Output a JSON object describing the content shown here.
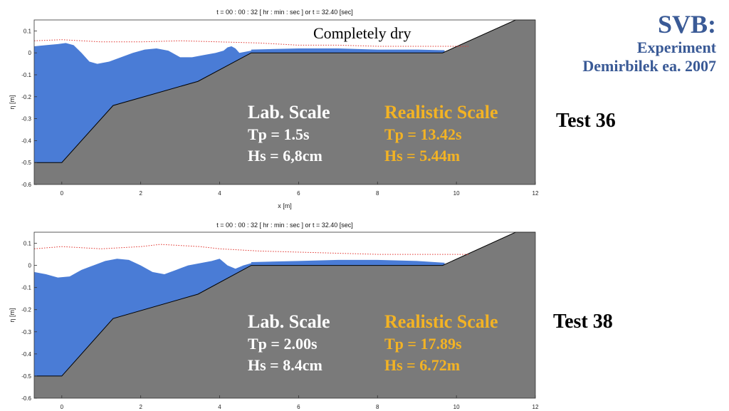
{
  "brand": {
    "title": "SVB:",
    "line2": "Experiment",
    "line3": "Demirbilek ea. 2007"
  },
  "colors": {
    "water": "#4a7cd6",
    "bed": "#7a7a7a",
    "bed_edge": "#000000",
    "envelope": "#e0302a",
    "lab_text": "#ffffff",
    "real_text": "#f3b324",
    "brand_text": "#3a5a96"
  },
  "chart_data": [
    {
      "type": "area",
      "title": "t = 00 : 00 : 32 [ hr : min : sec ] or t =  32.40 [sec]",
      "xlabel": "x [m]",
      "ylabel": "η [m]",
      "xlim": [
        -0.7,
        12
      ],
      "ylim": [
        -0.6,
        0.15
      ],
      "xticks": [
        "0",
        "2",
        "4",
        "6",
        "8",
        "10",
        "12"
      ],
      "yticks": [
        "0.1",
        "0",
        "-0.1",
        "-0.2",
        "-0.3",
        "-0.4",
        "-0.5",
        "-0.6"
      ],
      "bed": {
        "x": [
          -0.7,
          0,
          1.3,
          3.45,
          4.8,
          9.65,
          11.5,
          12
        ],
        "z": [
          -0.5,
          -0.5,
          -0.24,
          -0.13,
          0.0,
          0.0,
          0.15,
          0.15
        ]
      },
      "surface": {
        "x": [
          -0.7,
          -0.4,
          -0.1,
          0.1,
          0.3,
          0.5,
          0.7,
          0.9,
          1.2,
          1.5,
          1.8,
          2.1,
          2.4,
          2.7,
          3.0,
          3.3,
          3.6,
          3.9,
          4.1,
          4.2,
          4.3,
          4.4,
          4.5,
          4.8
        ],
        "y": [
          0.03,
          0.035,
          0.04,
          0.045,
          0.035,
          0.0,
          -0.04,
          -0.05,
          -0.04,
          -0.02,
          0.0,
          0.015,
          0.02,
          0.01,
          -0.02,
          -0.02,
          -0.01,
          -0.0,
          0.01,
          0.025,
          0.03,
          0.02,
          0.0,
          0.01
        ]
      },
      "shelf_water": {
        "x": [
          4.8,
          6,
          7,
          8,
          9,
          9.7
        ],
        "y": [
          0.015,
          0.02,
          0.02,
          0.015,
          0.015,
          0.012
        ]
      },
      "envelope": {
        "x": [
          -0.7,
          0,
          1,
          2,
          3,
          4,
          5,
          6,
          7,
          8,
          9,
          10,
          10.3
        ],
        "y": [
          0.055,
          0.06,
          0.05,
          0.05,
          0.055,
          0.05,
          0.045,
          0.035,
          0.035,
          0.03,
          0.03,
          0.03,
          0.03
        ]
      },
      "annotation": "Completely dry",
      "lab": {
        "header": "Lab. Scale",
        "tp": "Tp = 1.5s",
        "hs": "Hs = 6,8cm"
      },
      "real": {
        "header": "Realistic Scale",
        "tp": "Tp = 13.42s",
        "hs": "Hs = 5.44m"
      },
      "test": "Test 36"
    },
    {
      "type": "area",
      "title": "t = 00 : 00 : 32 [ hr : min : sec ] or t =  32.40 [sec]",
      "xlabel": "",
      "ylabel": "η [m]",
      "xlim": [
        -0.7,
        12
      ],
      "ylim": [
        -0.6,
        0.15
      ],
      "xticks": [
        "0",
        "2",
        "4",
        "6",
        "8",
        "10",
        "12"
      ],
      "yticks": [
        "0.1",
        "0",
        "-0.1",
        "-0.2",
        "-0.3",
        "-0.4",
        "-0.5",
        "-0.6"
      ],
      "bed": {
        "x": [
          -0.7,
          0,
          1.3,
          3.45,
          4.8,
          9.65,
          11.5,
          12
        ],
        "z": [
          -0.5,
          -0.5,
          -0.24,
          -0.13,
          0.0,
          0.0,
          0.15,
          0.15
        ]
      },
      "surface": {
        "x": [
          -0.7,
          -0.4,
          -0.1,
          0.2,
          0.5,
          0.8,
          1.1,
          1.4,
          1.7,
          2.0,
          2.3,
          2.6,
          2.9,
          3.2,
          3.5,
          3.8,
          4.0,
          4.2,
          4.4,
          4.6,
          4.8
        ],
        "y": [
          -0.03,
          -0.04,
          -0.055,
          -0.05,
          -0.02,
          0.0,
          0.02,
          0.03,
          0.025,
          0.0,
          -0.03,
          -0.04,
          -0.02,
          0.0,
          0.01,
          0.02,
          0.03,
          0.0,
          -0.015,
          0.0,
          0.01
        ]
      },
      "shelf_water": {
        "x": [
          4.8,
          6,
          7,
          8,
          9,
          9.7
        ],
        "y": [
          0.015,
          0.02,
          0.025,
          0.025,
          0.02,
          0.012
        ]
      },
      "envelope": {
        "x": [
          -0.7,
          0,
          1,
          2,
          2.5,
          3,
          3.5,
          4,
          5,
          6,
          7,
          8,
          9,
          10,
          10.3
        ],
        "y": [
          0.075,
          0.085,
          0.075,
          0.085,
          0.095,
          0.09,
          0.085,
          0.075,
          0.065,
          0.06,
          0.055,
          0.05,
          0.05,
          0.05,
          0.05
        ]
      },
      "annotation": "",
      "lab": {
        "header": "Lab. Scale",
        "tp": "Tp = 2.00s",
        "hs": "Hs = 8.4cm"
      },
      "real": {
        "header": "Realistic Scale",
        "tp": "Tp = 17.89s",
        "hs": "Hs = 6.72m"
      },
      "test": "Test 38"
    }
  ]
}
